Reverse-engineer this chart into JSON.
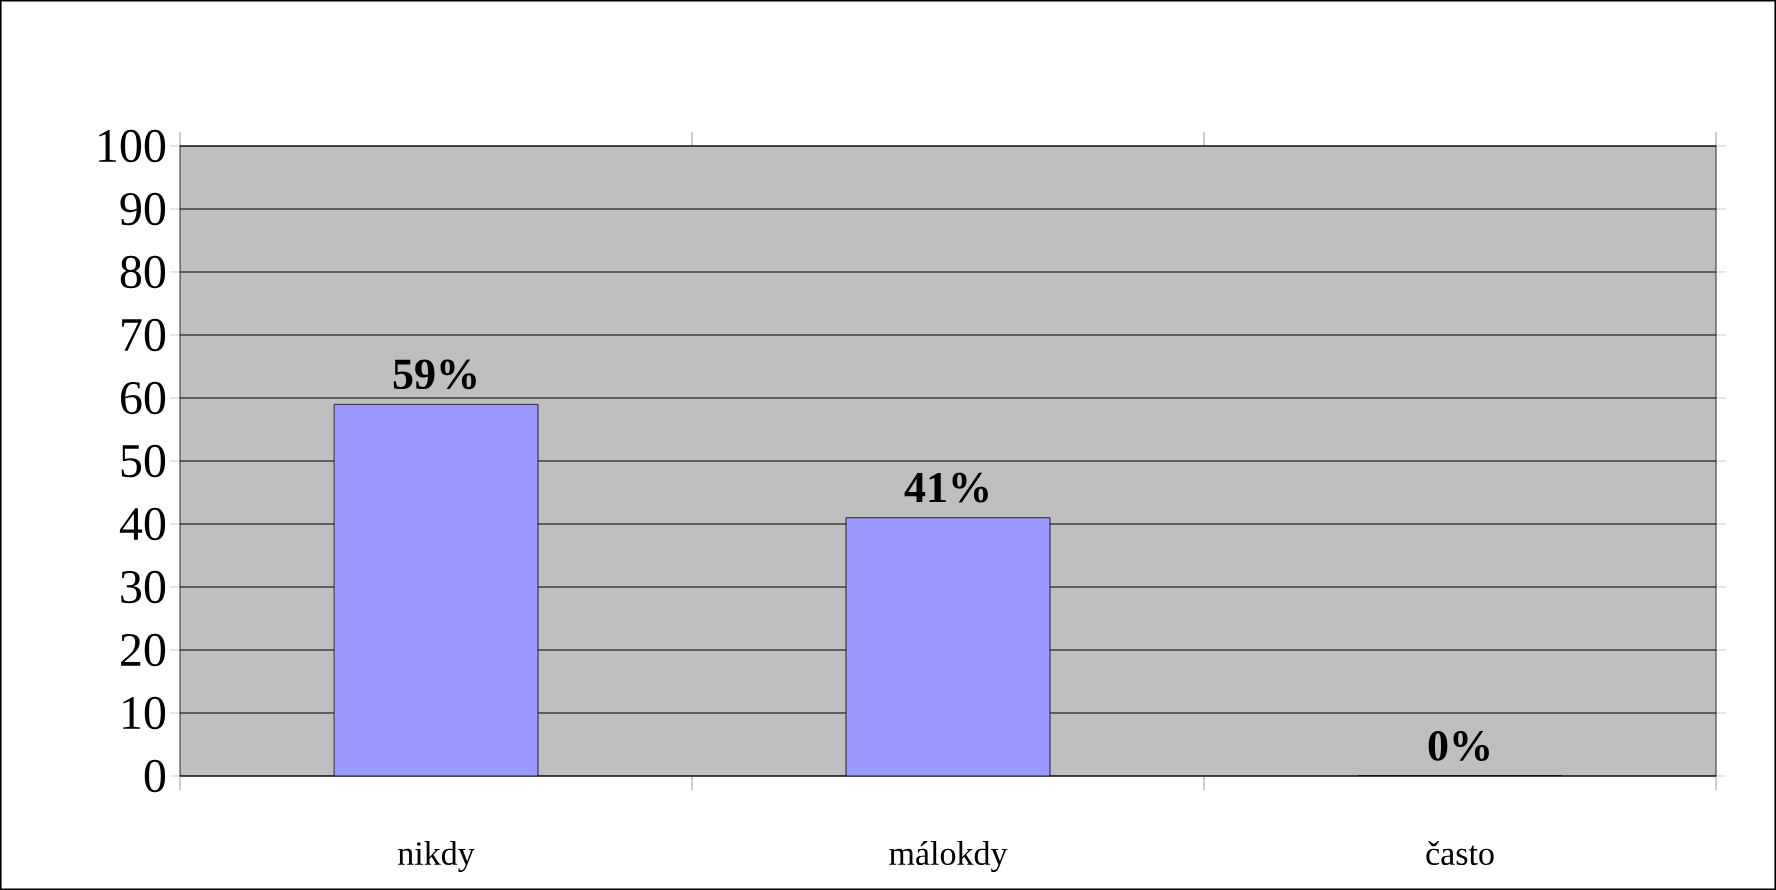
{
  "chart_data": {
    "type": "bar",
    "categories": [
      "nikdy",
      "málokdy",
      "často"
    ],
    "values": [
      59,
      41,
      0
    ],
    "value_labels": [
      "59%",
      "41%",
      "0%"
    ],
    "color": "#9999ff",
    "ylim": [
      0,
      100
    ],
    "yticks": [
      0,
      10,
      20,
      30,
      40,
      50,
      60,
      70,
      80,
      90,
      100
    ],
    "grid": "y"
  }
}
